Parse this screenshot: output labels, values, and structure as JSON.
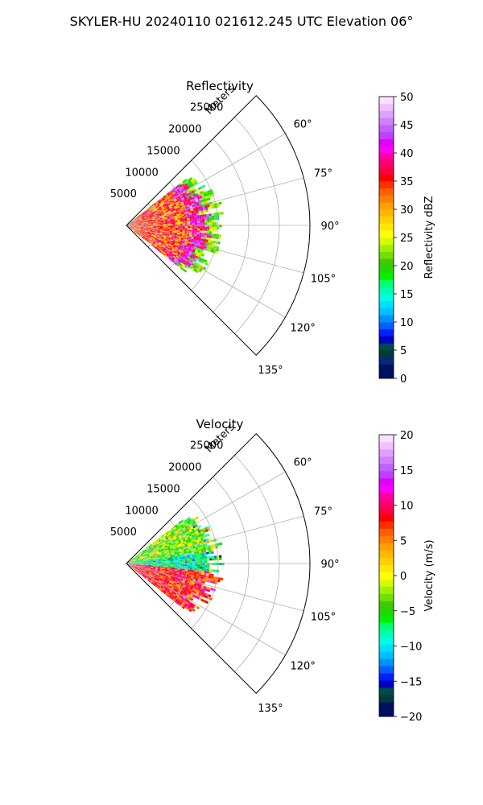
{
  "figure": {
    "title": "SKYLER-HU  20240110  021612.245 UTC Elevation 06°"
  },
  "chart_data": [
    {
      "type": "heatmap",
      "projection": "polar-sector",
      "title": "Reflectivity",
      "radial_label": "Meters",
      "radial_range": [
        0,
        30000
      ],
      "radial_ticks": [
        5000,
        10000,
        15000,
        20000,
        25000
      ],
      "radial_tick_labels": [
        "5000",
        "10000",
        "15000",
        "20000",
        "25000"
      ],
      "azimuth_range_deg": [
        45,
        135
      ],
      "azimuth_ticks": [
        60,
        75,
        90,
        105,
        120,
        135
      ],
      "azimuth_tick_labels": [
        "60°",
        "75°",
        "90°",
        "105°",
        "120°",
        "135°"
      ],
      "grid": true,
      "colorbar": {
        "label": "Reflectivity dBZ",
        "range": [
          0,
          50
        ],
        "ticks": [
          0,
          5,
          10,
          15,
          20,
          25,
          30,
          35,
          40,
          45,
          50
        ],
        "tick_labels": [
          "0",
          "5",
          "10",
          "15",
          "20",
          "25",
          "30",
          "35",
          "40",
          "45",
          "50"
        ],
        "colors": [
          "#001060",
          "#00105a",
          "#002a7a",
          "#003a3a",
          "#004a4a",
          "#0000c0",
          "#0020ff",
          "#0060ff",
          "#0090ff",
          "#00c0ff",
          "#00e0ff",
          "#00ffe0",
          "#00ffb0",
          "#00ff70",
          "#00f000",
          "#20d800",
          "#40c800",
          "#70e000",
          "#a0f000",
          "#d0ff00",
          "#ffff00",
          "#ffe800",
          "#ffd000",
          "#ffb800",
          "#ffa000",
          "#ff8000",
          "#ff6000",
          "#ff3000",
          "#ff0000",
          "#ff0040",
          "#ff0070",
          "#ff00a0",
          "#ff00ff",
          "#e000ff",
          "#c040ff",
          "#c060ff",
          "#d080ff",
          "#e0a0ff",
          "#f0c0ff",
          "#fce0ff"
        ]
      },
      "data_extent": {
        "max_range_m": 16000,
        "azimuth_span_deg": [
          52,
          128
        ],
        "dominant_range_dbz": [
          30,
          45
        ]
      }
    },
    {
      "type": "heatmap",
      "projection": "polar-sector",
      "title": "Velocity",
      "radial_label": "Meters",
      "radial_range": [
        0,
        30000
      ],
      "radial_ticks": [
        5000,
        10000,
        15000,
        20000,
        25000
      ],
      "radial_tick_labels": [
        "5000",
        "10000",
        "15000",
        "20000",
        "25000"
      ],
      "azimuth_range_deg": [
        45,
        135
      ],
      "azimuth_ticks": [
        60,
        75,
        90,
        105,
        120,
        135
      ],
      "azimuth_tick_labels": [
        "60°",
        "75°",
        "90°",
        "105°",
        "120°",
        "135°"
      ],
      "grid": true,
      "colorbar": {
        "label": "Velocity (m/s)",
        "range": [
          -20,
          20
        ],
        "ticks": [
          -20,
          -15,
          -10,
          -5,
          0,
          5,
          10,
          15,
          20
        ],
        "tick_labels": [
          "−20",
          "−15",
          "−10",
          "−5",
          "0",
          "5",
          "10",
          "15",
          "20"
        ],
        "colors": [
          "#001060",
          "#00105a",
          "#003a3a",
          "#004a4a",
          "#0000c0",
          "#0020ff",
          "#0060ff",
          "#0090ff",
          "#00c0ff",
          "#00e0ff",
          "#00ffe0",
          "#00ffb0",
          "#00ff70",
          "#00f000",
          "#20d800",
          "#40c800",
          "#70e000",
          "#a0f000",
          "#d0ff00",
          "#ffff00",
          "#ffe800",
          "#ffd000",
          "#ffb800",
          "#ffa000",
          "#ff8000",
          "#ff6000",
          "#ff3000",
          "#ff0000",
          "#ff0040",
          "#ff0070",
          "#ff00a0",
          "#ff00ff",
          "#e000ff",
          "#c040ff",
          "#c060ff",
          "#d080ff",
          "#e0a0ff",
          "#f0c0ff",
          "#fce0ff"
        ]
      },
      "data_extent": {
        "max_range_m": 16000,
        "azimuth_span_deg": [
          52,
          128
        ],
        "dominant_range_ms": [
          -12,
          12
        ]
      }
    }
  ]
}
